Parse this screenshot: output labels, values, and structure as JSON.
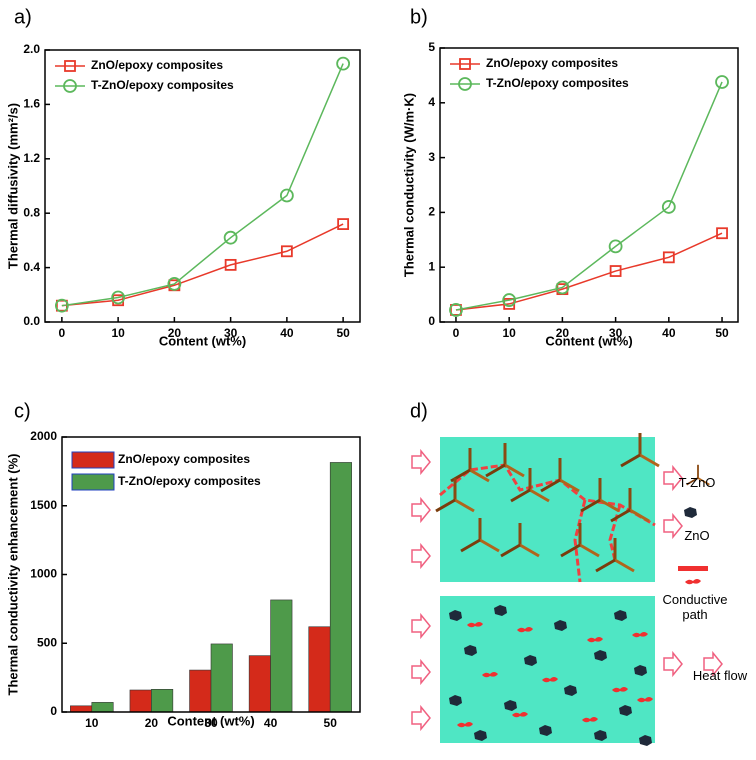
{
  "chart_data": [
    {
      "type": "line",
      "label": "a)",
      "xlabel": "Content (wt%)",
      "ylabel": "Thermal diffusivity (mm²/s)",
      "x": [
        0,
        10,
        20,
        30,
        40,
        50
      ],
      "series": [
        {
          "name": "ZnO/epoxy composites",
          "color": "#e8392a",
          "marker": "square",
          "values": [
            0.12,
            0.16,
            0.27,
            0.42,
            0.52,
            0.72
          ]
        },
        {
          "name": "T-ZnO/epoxy composites",
          "color": "#5cb85c",
          "marker": "circle",
          "values": [
            0.12,
            0.18,
            0.28,
            0.62,
            0.93,
            1.9
          ]
        }
      ],
      "xlim": [
        -3,
        53
      ],
      "xticks": [
        0,
        10,
        20,
        30,
        40,
        50
      ],
      "ylim": [
        0,
        2.0
      ],
      "yticks": [
        {
          "value": 0,
          "label": "0.0"
        },
        0.4,
        0.8,
        1.2,
        1.6,
        {
          "value": 2,
          "label": "2.0"
        }
      ],
      "legend": "upper left"
    },
    {
      "type": "line",
      "label": "b)",
      "xlabel": "Content (wt%)",
      "ylabel": "Thermal conductivity (W/m·K)",
      "x": [
        0,
        10,
        20,
        30,
        40,
        50
      ],
      "series": [
        {
          "name": "ZnO/epoxy composites",
          "color": "#e8392a",
          "marker": "square",
          "values": [
            0.22,
            0.33,
            0.6,
            0.93,
            1.18,
            1.62
          ]
        },
        {
          "name": "T-ZnO/epoxy composites",
          "color": "#5cb85c",
          "marker": "circle",
          "values": [
            0.22,
            0.4,
            0.63,
            1.38,
            2.1,
            4.38
          ]
        }
      ],
      "xlim": [
        -3,
        53
      ],
      "xticks": [
        0,
        10,
        20,
        30,
        40,
        50
      ],
      "ylim": [
        0,
        5
      ],
      "yticks": [
        0,
        1,
        2,
        3,
        4,
        5
      ],
      "legend": "upper left"
    },
    {
      "type": "bar",
      "label": "c)",
      "xlabel": "Content (wt%)",
      "ylabel": "Thermal conductivity enhancement (%)",
      "categories": [
        "10",
        "20",
        "30",
        "40",
        "50"
      ],
      "series": [
        {
          "name": "ZnO/epoxy composites",
          "color": "#d42a1a",
          "values": [
            45,
            160,
            305,
            410,
            620
          ]
        },
        {
          "name": "T-ZnO/epoxy composites",
          "color": "#4e9a4a",
          "values": [
            70,
            165,
            495,
            815,
            1815
          ]
        }
      ],
      "ylim": [
        0,
        2000
      ],
      "yticks": [
        0,
        500,
        1000,
        1500,
        2000
      ],
      "legend": "upper left"
    }
  ],
  "diagram": {
    "label": "d)",
    "legend": {
      "t_zno": "T-ZnO",
      "zno": "ZnO",
      "path": "Conductive path",
      "heat": "Heat flow"
    }
  }
}
